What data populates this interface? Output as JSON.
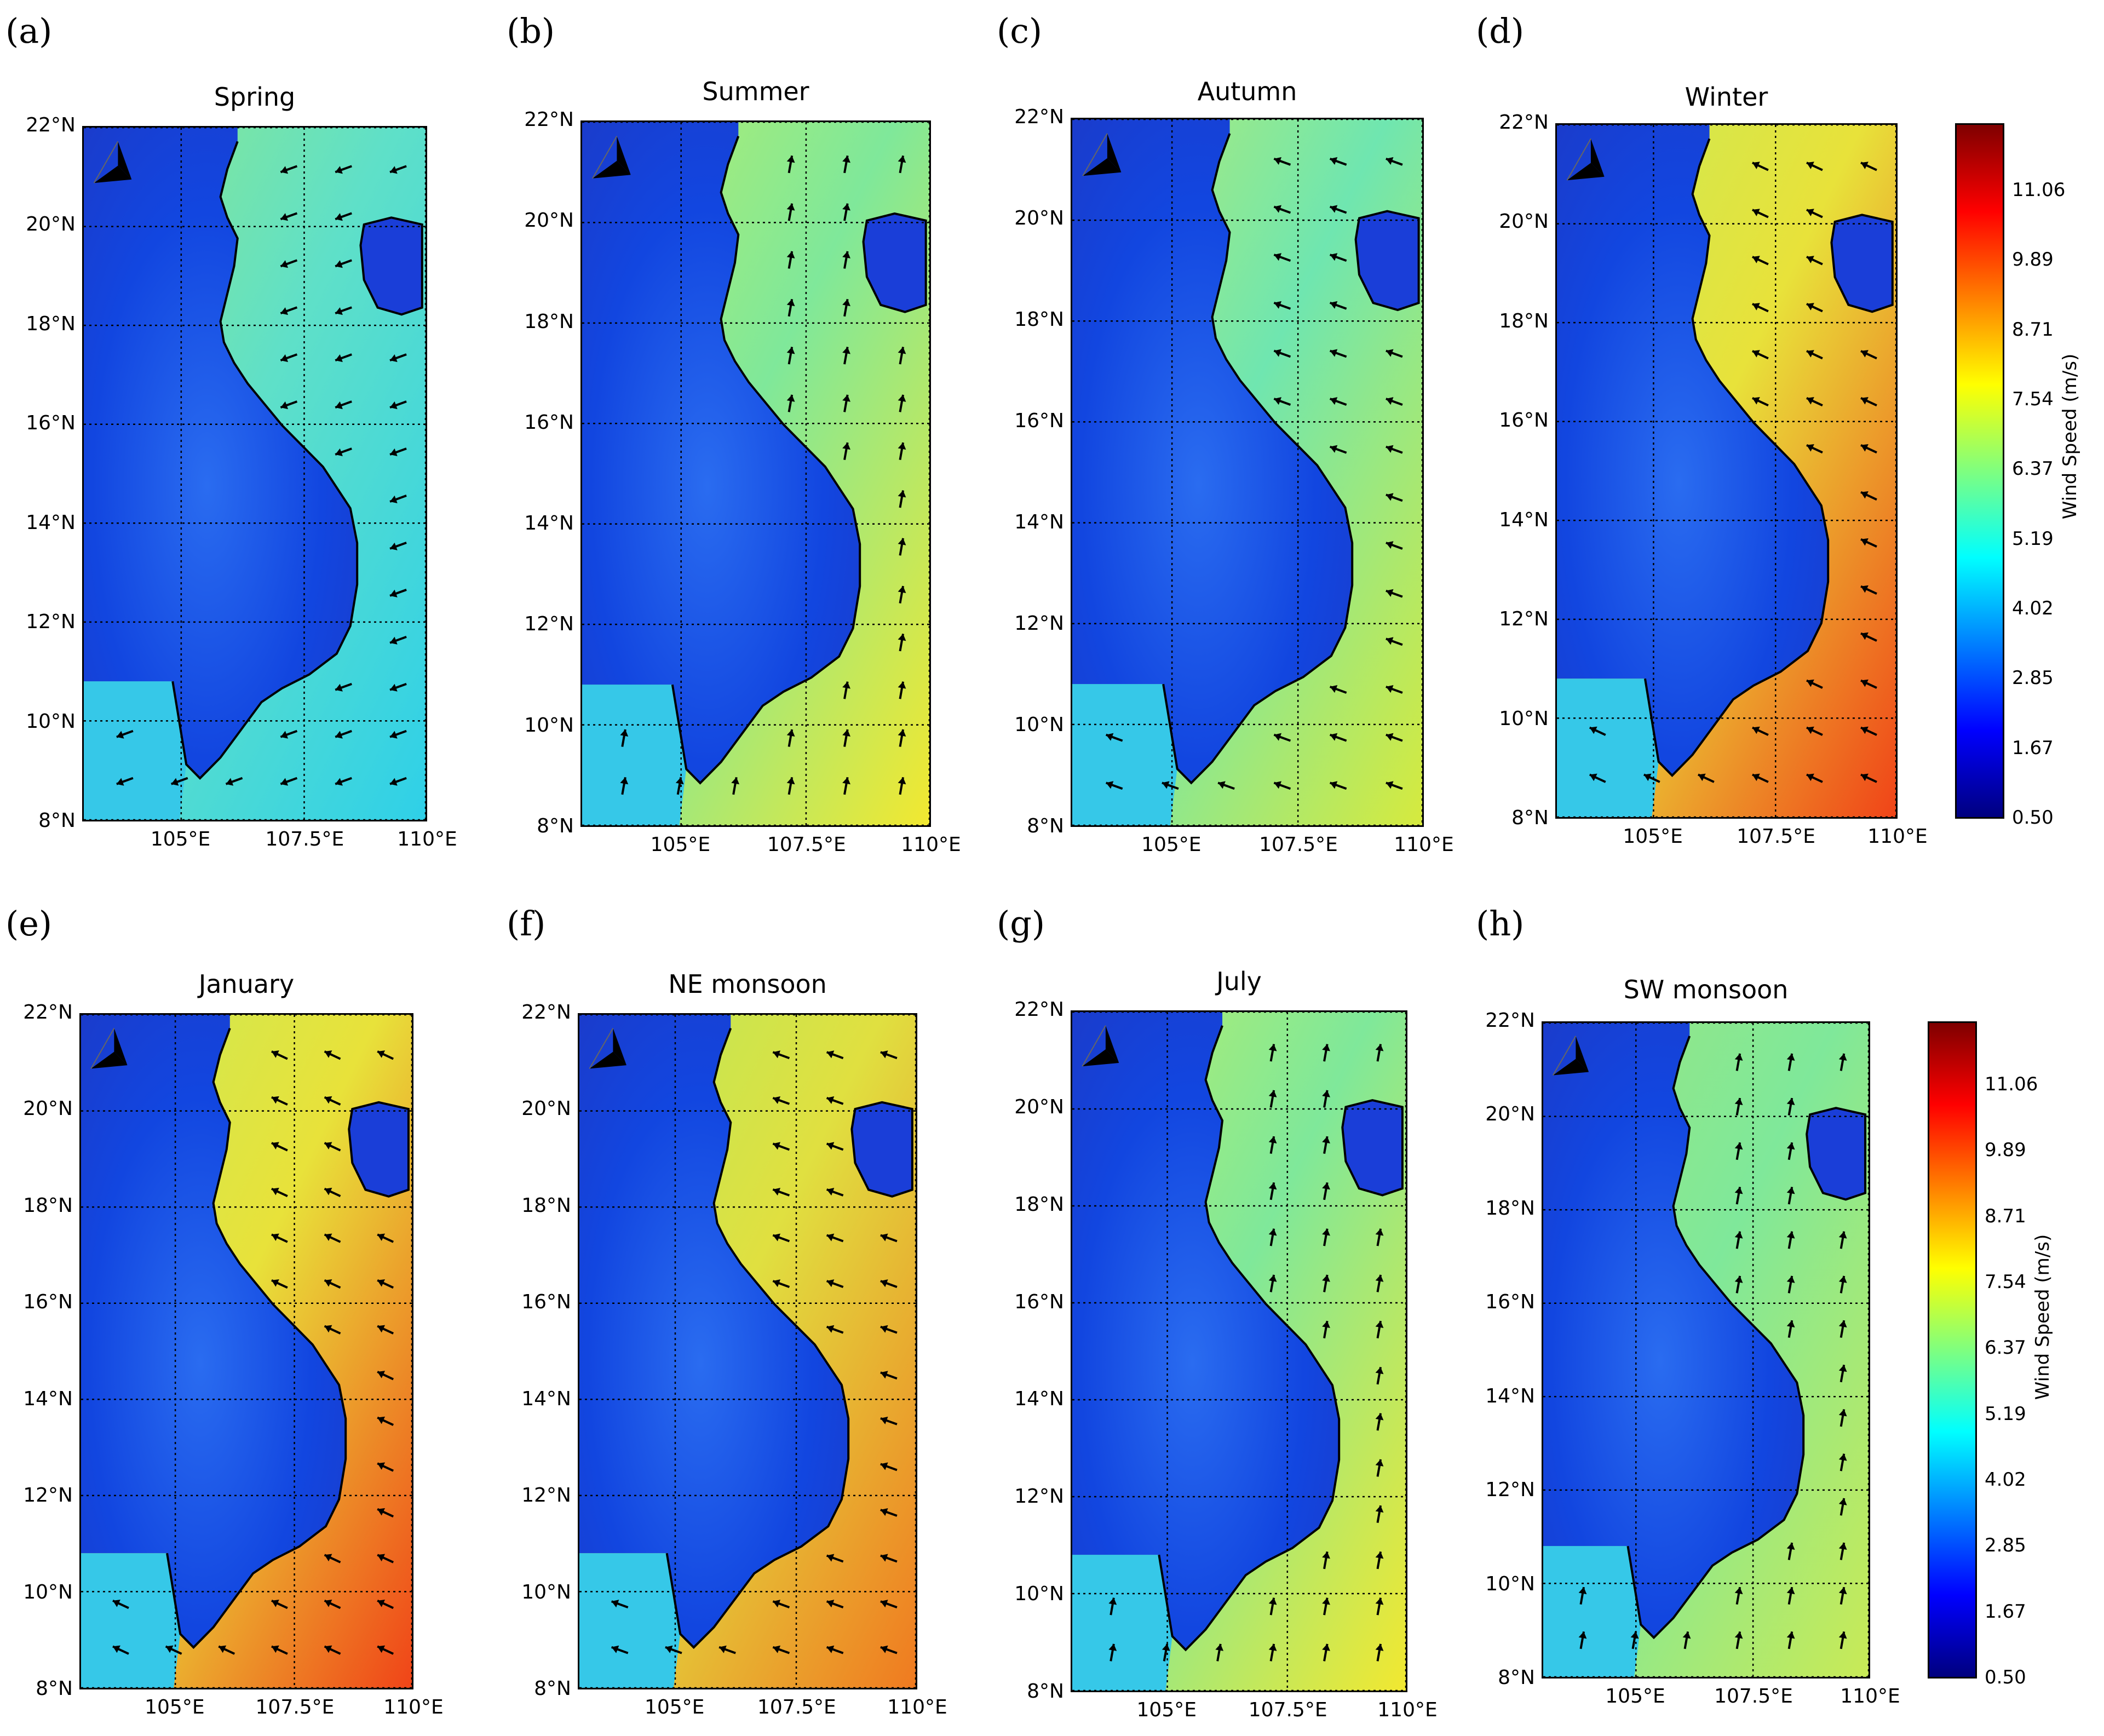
{
  "figure": {
    "panels": [
      {
        "letter": "(a)",
        "title": "Spring",
        "season": "spring"
      },
      {
        "letter": "(b)",
        "title": "Summer",
        "season": "summer"
      },
      {
        "letter": "(c)",
        "title": "Autumn",
        "season": "autumn"
      },
      {
        "letter": "(d)",
        "title": "Winter",
        "season": "winter"
      },
      {
        "letter": "(e)",
        "title": "January",
        "season": "winter"
      },
      {
        "letter": "(f)",
        "title": "NE monsoon",
        "season": "ne"
      },
      {
        "letter": "(g)",
        "title": "July",
        "season": "summer"
      },
      {
        "letter": "(h)",
        "title": "SW monsoon",
        "season": "sw"
      }
    ],
    "lat_ticks": [
      "22°N",
      "20°N",
      "18°N",
      "16°N",
      "14°N",
      "12°N",
      "10°N",
      "8°N"
    ],
    "lon_ticks": [
      "105°E",
      "107.5°E",
      "110°E"
    ],
    "colorbar": {
      "label": "Wind Speed (m/s)",
      "ticks": [
        "11.06",
        "9.89",
        "8.71",
        "7.54",
        "6.37",
        "5.19",
        "4.02",
        "2.85",
        "1.67",
        "0.50"
      ],
      "min": 0.5,
      "max": 12.2,
      "colors": [
        "#00007f",
        "#0000ff",
        "#007fff",
        "#00ffff",
        "#7fff7f",
        "#ffff00",
        "#ff7f00",
        "#ff0000",
        "#7f0000"
      ]
    }
  }
}
